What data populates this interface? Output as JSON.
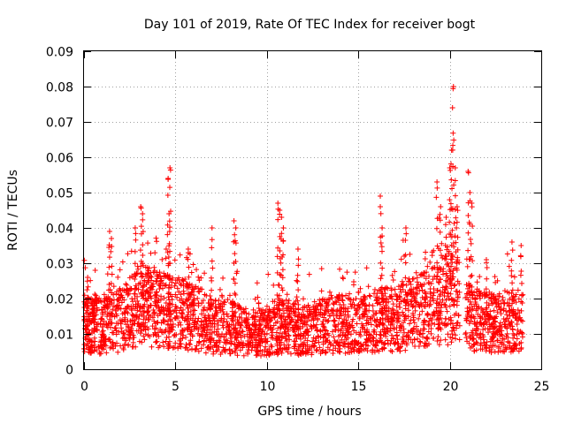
{
  "chart_data": {
    "type": "scatter",
    "title": "Day 101 of 2019, Rate Of TEC Index for receiver bogt",
    "xlabel": "GPS time / hours",
    "ylabel": "ROTI / TECUs",
    "xlim": [
      0,
      25
    ],
    "ylim": [
      0,
      0.09
    ],
    "xticks": [
      0,
      5,
      10,
      15,
      20,
      25
    ],
    "xtick_labels": [
      "0",
      "5",
      "10",
      "15",
      "20",
      "25"
    ],
    "yticks": [
      0,
      0.01,
      0.02,
      0.03,
      0.04,
      0.05,
      0.06,
      0.07,
      0.08,
      0.09
    ],
    "ytick_labels": [
      "0",
      "0.01",
      "0.02",
      "0.03",
      "0.04",
      "0.05",
      "0.06",
      "0.07",
      "0.08",
      "0.09"
    ],
    "grid": true,
    "marker": "plus",
    "color": "#ff0000",
    "data_range_hours": [
      0,
      24
    ],
    "series": [
      {
        "name": "ROTI",
        "profile": [
          {
            "x": 0,
            "y": 0.013
          },
          {
            "x": 1,
            "y": 0.012
          },
          {
            "x": 2,
            "y": 0.014
          },
          {
            "x": 3,
            "y": 0.018
          },
          {
            "x": 4,
            "y": 0.017
          },
          {
            "x": 5,
            "y": 0.016
          },
          {
            "x": 6,
            "y": 0.015
          },
          {
            "x": 7,
            "y": 0.012
          },
          {
            "x": 8,
            "y": 0.012
          },
          {
            "x": 9,
            "y": 0.01
          },
          {
            "x": 10,
            "y": 0.011
          },
          {
            "x": 11,
            "y": 0.012
          },
          {
            "x": 12,
            "y": 0.011
          },
          {
            "x": 13,
            "y": 0.012
          },
          {
            "x": 14,
            "y": 0.013
          },
          {
            "x": 15,
            "y": 0.012
          },
          {
            "x": 16,
            "y": 0.014
          },
          {
            "x": 17,
            "y": 0.014
          },
          {
            "x": 18,
            "y": 0.016
          },
          {
            "x": 19,
            "y": 0.018
          },
          {
            "x": 20,
            "y": 0.02
          },
          {
            "x": 20.5,
            "y": 0.019
          },
          {
            "x": 21,
            "y": 0.015
          },
          {
            "x": 22,
            "y": 0.013
          },
          {
            "x": 23,
            "y": 0.013
          },
          {
            "x": 24,
            "y": 0.014
          }
        ],
        "peaks": [
          {
            "x": 0.2,
            "y": 0.026
          },
          {
            "x": 1.4,
            "y": 0.039
          },
          {
            "x": 1.5,
            "y": 0.037
          },
          {
            "x": 2.8,
            "y": 0.04
          },
          {
            "x": 3.1,
            "y": 0.046
          },
          {
            "x": 3.2,
            "y": 0.044
          },
          {
            "x": 4.6,
            "y": 0.054
          },
          {
            "x": 4.7,
            "y": 0.057
          },
          {
            "x": 4.65,
            "y": 0.044
          },
          {
            "x": 5.7,
            "y": 0.034
          },
          {
            "x": 7.0,
            "y": 0.04
          },
          {
            "x": 8.2,
            "y": 0.042
          },
          {
            "x": 8.3,
            "y": 0.04
          },
          {
            "x": 10.6,
            "y": 0.047
          },
          {
            "x": 10.7,
            "y": 0.045
          },
          {
            "x": 10.8,
            "y": 0.043
          },
          {
            "x": 10.9,
            "y": 0.04
          },
          {
            "x": 11.7,
            "y": 0.034
          },
          {
            "x": 16.2,
            "y": 0.049
          },
          {
            "x": 16.3,
            "y": 0.04
          },
          {
            "x": 17.6,
            "y": 0.04
          },
          {
            "x": 19.3,
            "y": 0.053
          },
          {
            "x": 19.5,
            "y": 0.046
          },
          {
            "x": 19.8,
            "y": 0.043
          },
          {
            "x": 20.0,
            "y": 0.057
          },
          {
            "x": 20.1,
            "y": 0.062
          },
          {
            "x": 20.15,
            "y": 0.074
          },
          {
            "x": 20.2,
            "y": 0.08
          },
          {
            "x": 20.3,
            "y": 0.057
          },
          {
            "x": 20.4,
            "y": 0.046
          },
          {
            "x": 21.0,
            "y": 0.056
          },
          {
            "x": 21.1,
            "y": 0.05
          },
          {
            "x": 21.2,
            "y": 0.047
          },
          {
            "x": 22.0,
            "y": 0.031
          },
          {
            "x": 23.4,
            "y": 0.036
          },
          {
            "x": 23.9,
            "y": 0.035
          }
        ]
      }
    ]
  }
}
